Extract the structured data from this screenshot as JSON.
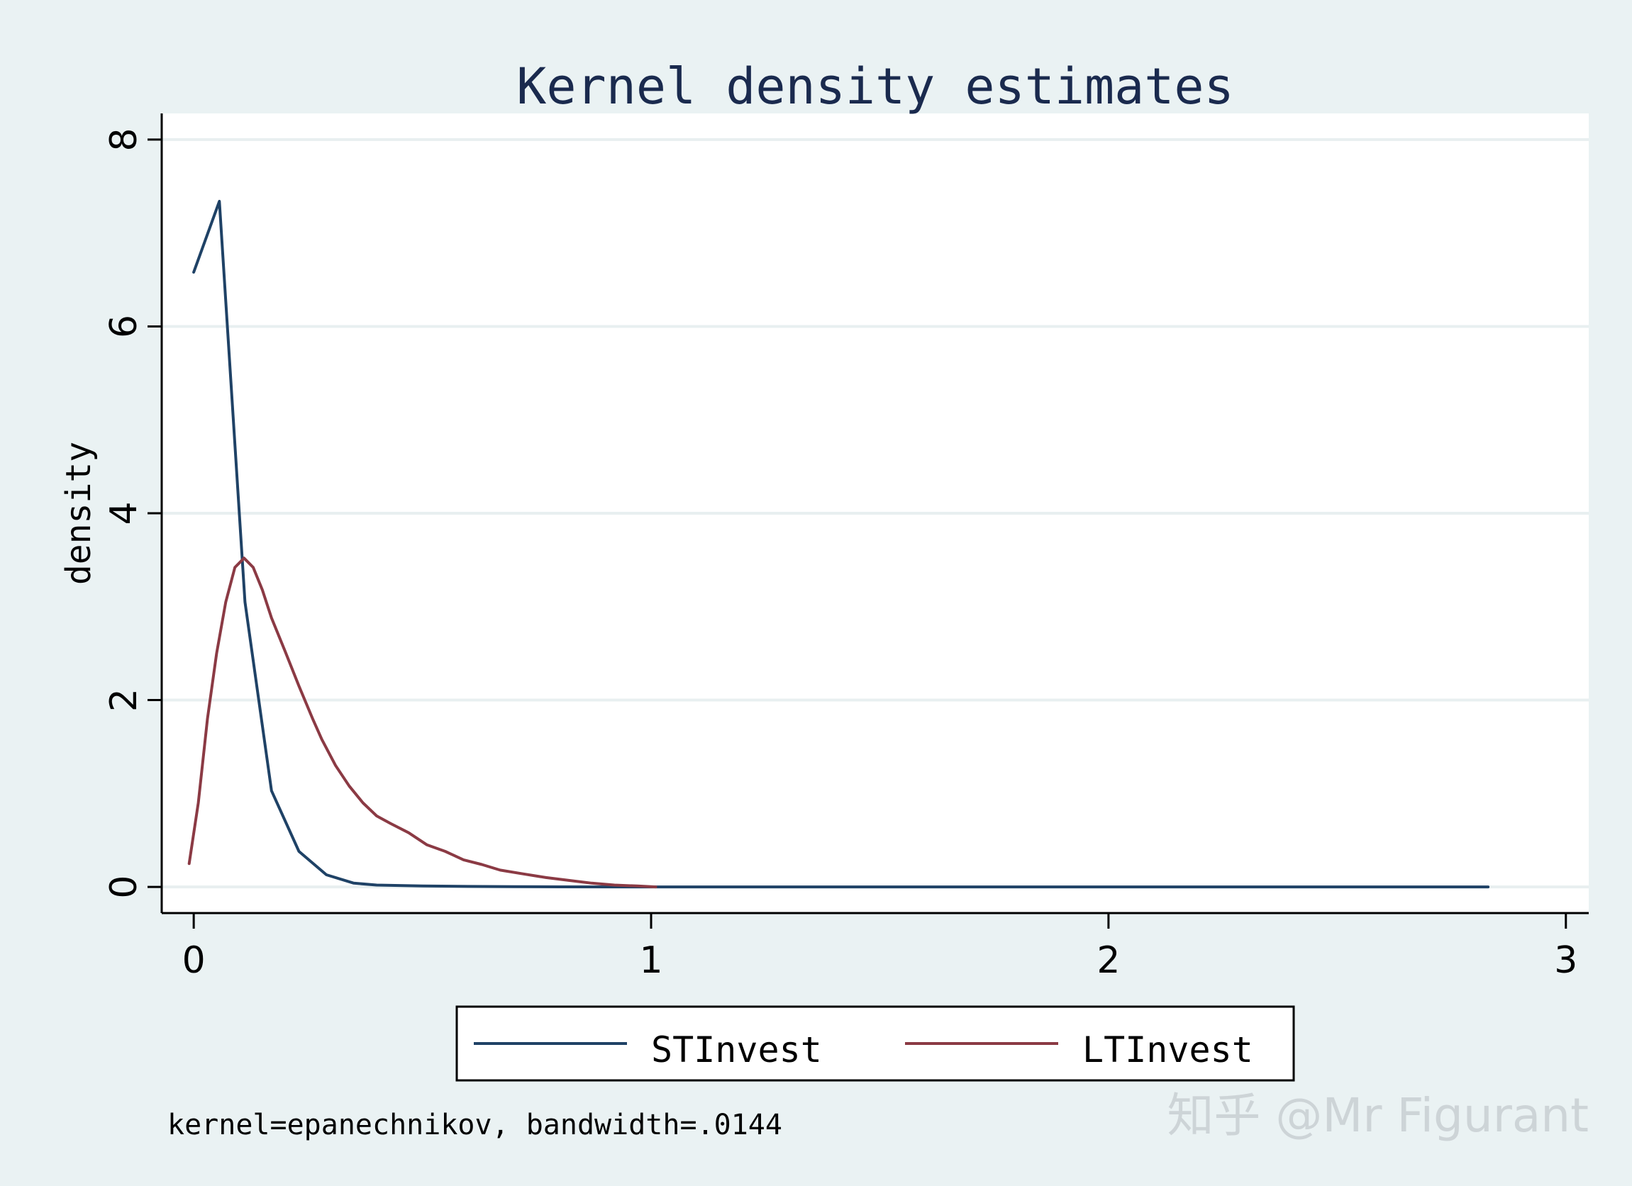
{
  "chart_data": {
    "type": "line",
    "title": "Kernel density estimates",
    "xlabel": "",
    "ylabel": "density",
    "xlim": [
      -0.07,
      3.05
    ],
    "ylim": [
      -0.28,
      8.28
    ],
    "x_ticks": [
      0,
      1,
      2,
      3
    ],
    "y_ticks": [
      0,
      2,
      4,
      6,
      8
    ],
    "grid": "horizontal",
    "legend_position": "bottom",
    "note": "kernel=epanechnikov, bandwidth=.0144",
    "colors": {
      "STInvest": "#1f4266",
      "LTInvest": "#8b3a44"
    },
    "series": [
      {
        "name": "STInvest",
        "x": [
          0.0,
          0.056,
          0.112,
          0.17,
          0.23,
          0.29,
          0.35,
          0.4,
          0.5,
          0.6,
          0.7,
          0.8,
          1.0,
          1.5,
          2.0,
          2.5,
          2.83
        ],
        "values": [
          6.58,
          7.34,
          3.05,
          1.03,
          0.38,
          0.13,
          0.04,
          0.02,
          0.01,
          0.005,
          0.002,
          0.001,
          0.0,
          0.0,
          0.0,
          0.0,
          0.0
        ]
      },
      {
        "name": "LTInvest",
        "x": [
          -0.01,
          0.01,
          0.03,
          0.05,
          0.07,
          0.09,
          0.11,
          0.13,
          0.15,
          0.17,
          0.2,
          0.23,
          0.26,
          0.28,
          0.31,
          0.34,
          0.37,
          0.4,
          0.43,
          0.47,
          0.51,
          0.55,
          0.59,
          0.63,
          0.67,
          0.72,
          0.77,
          0.82,
          0.87,
          0.92,
          0.97,
          1.01
        ],
        "values": [
          0.25,
          0.9,
          1.8,
          2.5,
          3.05,
          3.42,
          3.52,
          3.42,
          3.18,
          2.88,
          2.52,
          2.15,
          1.8,
          1.58,
          1.3,
          1.08,
          0.9,
          0.76,
          0.68,
          0.58,
          0.45,
          0.38,
          0.29,
          0.24,
          0.18,
          0.14,
          0.1,
          0.07,
          0.04,
          0.02,
          0.01,
          0.0
        ]
      }
    ]
  },
  "watermark": "知乎 @Mr Figurant"
}
